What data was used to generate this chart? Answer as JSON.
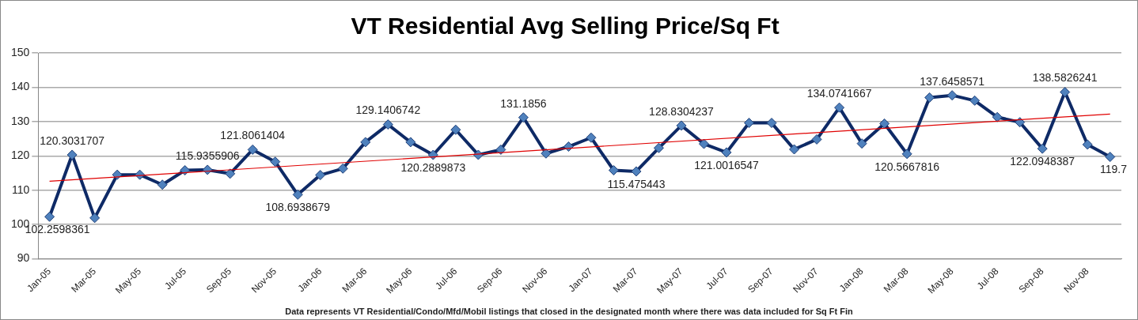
{
  "chart_data": {
    "type": "line",
    "title": "VT Residential Avg Selling Price/Sq Ft",
    "categories": [
      "Jan-05",
      null,
      "Mar-05",
      null,
      "May-05",
      null,
      "Jul-05",
      null,
      "Sep-05",
      null,
      "Nov-05",
      null,
      "Jan-06",
      null,
      "Mar-06",
      null,
      "May-06",
      null,
      "Jul-06",
      null,
      "Sep-06",
      null,
      "Nov-06",
      null,
      "Jan-07",
      null,
      "Mar-07",
      null,
      "May-07",
      null,
      "Jul-07",
      null,
      "Sep-07",
      null,
      "Nov-07",
      null,
      "Jan-08",
      null,
      "Mar-08",
      null,
      "May-08",
      null,
      "Jul-08",
      null,
      "Sep-08",
      null,
      "Nov-08",
      null
    ],
    "series": [
      {
        "color": "#0e2a66",
        "values": [
          102.2598361,
          120.3031707,
          101.9,
          114.5,
          114.5,
          111.6,
          115.8,
          115.9355906,
          114.8,
          121.8061404,
          118.3,
          108.6938679,
          114.4,
          116.3,
          124.0,
          129.1406742,
          124.0,
          120.2889873,
          127.6,
          120.3,
          121.8,
          131.1856,
          120.7,
          122.7,
          125.3,
          115.8,
          115.475443,
          122.3,
          128.8304237,
          123.5,
          121.0016547,
          129.6,
          129.6,
          121.9,
          124.8,
          134.0741667,
          123.6,
          129.4,
          120.5667816,
          137.0,
          137.6458571,
          136.1,
          131.3,
          129.8,
          122.0948387,
          138.5826241,
          123.3,
          119.7
        ],
        "value_labels": [
          "102.2598361",
          "120.3031707",
          null,
          null,
          null,
          null,
          null,
          "115.9355906",
          null,
          "121.8061404",
          null,
          "108.6938679",
          null,
          null,
          null,
          "129.1406742",
          null,
          "120.2889873",
          null,
          null,
          null,
          "131.1856",
          null,
          null,
          null,
          null,
          "115.475443",
          null,
          "128.8304237",
          null,
          "121.0016547",
          null,
          null,
          null,
          null,
          "134.0741667",
          null,
          null,
          "120.5667816",
          null,
          "137.6458571",
          null,
          null,
          null,
          "122.0948387",
          "138.5826241",
          null,
          "119.7"
        ]
      },
      {
        "type": "line",
        "color": "#e00000",
        "marker": "none",
        "values": [
          112.6,
          null,
          null,
          null,
          null,
          null,
          null,
          null,
          null,
          null,
          null,
          null,
          null,
          null,
          null,
          null,
          null,
          null,
          null,
          null,
          null,
          null,
          null,
          null,
          null,
          null,
          null,
          null,
          null,
          null,
          null,
          null,
          null,
          null,
          null,
          null,
          null,
          null,
          null,
          null,
          null,
          null,
          null,
          null,
          null,
          null,
          null,
          132.2
        ]
      }
    ],
    "ylim": [
      90,
      150
    ],
    "yticks": [
      90,
      100,
      110,
      120,
      130,
      140,
      150
    ],
    "grid": "y",
    "legend": false,
    "marker": "diamond",
    "annotations": [
      "Data represents VT Residential/Condo/Mfd/Mobil listings that closed in the designated month where there was data included for Sq Ft Fin"
    ]
  }
}
